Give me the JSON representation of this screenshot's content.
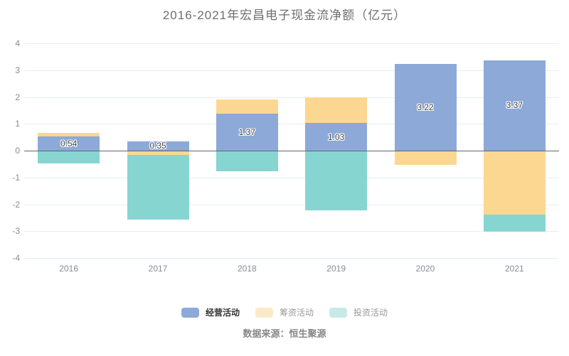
{
  "title": "2016-2021年宏昌电子现金流净额（亿元）",
  "source": "数据来源：恒生聚源",
  "colors": {
    "operating": "#8ca9d7",
    "financing": "#fcd792",
    "investing": "#87d5d1",
    "financing_legend": "#fbeaca",
    "investing_legend": "#c7eae7",
    "gridline": "#e6edf5",
    "zero_line": "#62656e",
    "title_text": "#6e6e6e",
    "axis_text": "#8a8a95"
  },
  "chart_data": {
    "type": "bar",
    "stacked": true,
    "title": "2016-2021年宏昌电子现金流净额（亿元）",
    "categories": [
      "2016",
      "2017",
      "2018",
      "2019",
      "2020",
      "2021"
    ],
    "series": [
      {
        "name": "经营活动",
        "color": "#8ca9d7",
        "legend_swatch": "#8ca9d7",
        "legend_active": true,
        "values": [
          0.54,
          0.35,
          1.37,
          1.03,
          3.22,
          3.37
        ],
        "labels": [
          "0.54",
          "0.35",
          "1.37",
          "1.03",
          "3.22",
          "3.37"
        ]
      },
      {
        "name": "筹资活动",
        "color": "#fcd792",
        "legend_swatch": "#fbeaca",
        "legend_active": false,
        "values": [
          0.13,
          -0.13,
          0.53,
          0.97,
          -0.5,
          -2.37
        ],
        "labels": null
      },
      {
        "name": "投资活动",
        "color": "#87d5d1",
        "legend_swatch": "#c7eae7",
        "legend_active": false,
        "values": [
          -0.45,
          -2.42,
          -0.73,
          -2.2,
          0,
          -0.62
        ],
        "labels": null
      }
    ],
    "xlabel": "",
    "ylabel": "",
    "ylim": [
      -4,
      4
    ],
    "y_ticks": [
      4,
      3,
      2,
      1,
      0,
      -1,
      -2,
      -3,
      -4
    ],
    "grid": true,
    "legend_position": "bottom"
  }
}
